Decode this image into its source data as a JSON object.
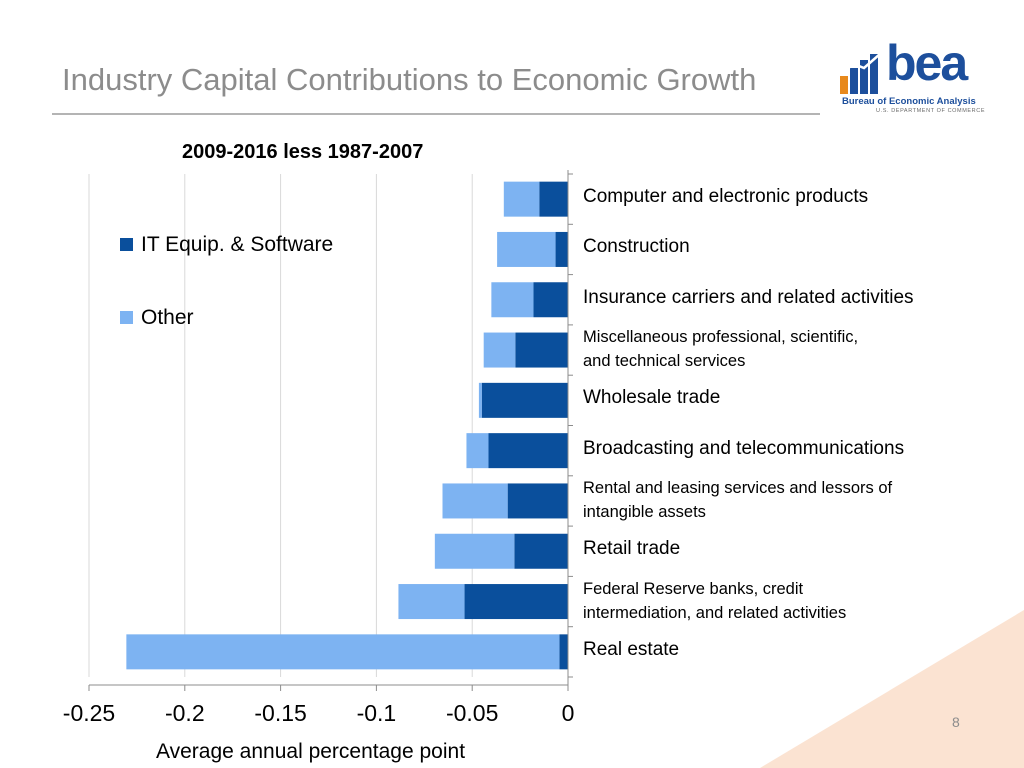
{
  "slide": {
    "title": "Industry Capital Contributions to Economic Growth",
    "page_number": "8"
  },
  "logo": {
    "word": "bea",
    "line1": "Bureau of Economic Analysis",
    "line2": "U.S. DEPARTMENT OF COMMERCE",
    "color": "#1d4f9c",
    "icon": "bea-bar-chart-icon"
  },
  "chart_data": {
    "type": "bar",
    "orientation": "horizontal",
    "stacked": true,
    "title": "2009-2016 less 1987-2007",
    "xlabel": "Average annual percentage point",
    "ylabel": "",
    "xlim": [
      -0.25,
      0
    ],
    "xticks": [
      "-0.25",
      "-0.2",
      "-0.15",
      "-0.1",
      "-0.05",
      "0"
    ],
    "grid": "vertical",
    "legend_position": "left",
    "categories": [
      "Computer and electronic products",
      "Construction",
      "Insurance carriers and related activities",
      "Miscellaneous professional, scientific, and technical services",
      "Wholesale trade",
      "Broadcasting and telecommunications",
      "Rental and leasing services and lessors of intangible assets",
      "Retail trade",
      "Federal Reserve banks, credit intermediation, and related activities",
      "Real estate"
    ],
    "category_lines": [
      [
        "Computer and electronic products"
      ],
      [
        "Construction"
      ],
      [
        "Insurance carriers and related activities"
      ],
      [
        "Miscellaneous professional, scientific,",
        "and technical services"
      ],
      [
        "Wholesale trade"
      ],
      [
        "Broadcasting and telecommunications"
      ],
      [
        "Rental and leasing services and lessors of",
        "intangible assets"
      ],
      [
        "Retail trade"
      ],
      [
        "Federal Reserve banks, credit",
        "intermediation, and related activities"
      ],
      [
        "Real estate"
      ]
    ],
    "series": [
      {
        "name": "IT Equip. & Software",
        "color": "#0a4f9c",
        "values": [
          -0.015,
          -0.0065,
          -0.018,
          -0.0275,
          -0.045,
          -0.0415,
          -0.0315,
          -0.028,
          -0.054,
          -0.0045
        ]
      },
      {
        "name": "Other",
        "color": "#7db3f2",
        "values": [
          -0.0185,
          -0.0305,
          -0.022,
          -0.0165,
          -0.0015,
          -0.0115,
          -0.034,
          -0.0415,
          -0.0345,
          -0.226
        ]
      }
    ]
  }
}
